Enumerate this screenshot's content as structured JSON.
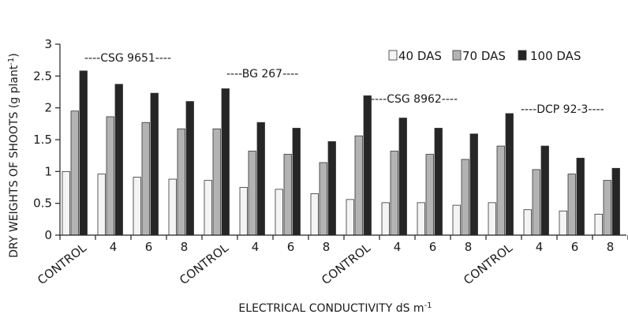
{
  "chart_data": {
    "type": "bar",
    "ylabel": "DRY WEIGHTS OF SHOOTS (g plant",
    "ylabel_sup": "-1",
    "ylabel_tail": ")",
    "xlabel": "ELECTRICAL CONDUCTIVITY dS m",
    "xlabel_sup": "-1",
    "ylim": [
      0,
      3
    ],
    "yticks": [
      "0",
      "0.5",
      "1",
      "1.5",
      "2",
      "2.5",
      "3"
    ],
    "ytick_values": [
      0,
      0.5,
      1,
      1.5,
      2,
      2.5,
      3
    ],
    "categories": [
      "CONTROL",
      "4",
      "6",
      "8",
      "CONTROL",
      "4",
      "6",
      "8",
      "CONTROL",
      "4",
      "6",
      "8",
      "CONTROL",
      "4",
      "6",
      "8"
    ],
    "series": [
      {
        "name": "40 DAS",
        "color": "#f4f4f4",
        "values": [
          1.0,
          0.96,
          0.91,
          0.88,
          0.86,
          0.75,
          0.72,
          0.65,
          0.56,
          0.51,
          0.51,
          0.47,
          0.51,
          0.4,
          0.38,
          0.33
        ]
      },
      {
        "name": "70 DAS",
        "color": "#b3b3b3",
        "values": [
          1.95,
          1.86,
          1.77,
          1.67,
          1.67,
          1.32,
          1.27,
          1.14,
          1.56,
          1.32,
          1.27,
          1.19,
          1.4,
          1.03,
          0.96,
          0.86
        ]
      },
      {
        "name": "100 DAS",
        "color": "#262626",
        "values": [
          2.58,
          2.37,
          2.23,
          2.1,
          2.3,
          1.77,
          1.68,
          1.47,
          2.19,
          1.84,
          1.68,
          1.59,
          1.91,
          1.4,
          1.21,
          1.05
        ]
      }
    ],
    "group_labels": [
      "----CSG 9651----",
      "----BG 267----",
      "----CSG 8962----",
      "----DCP 92-3----"
    ],
    "legend_position": "top-right",
    "grid": false
  }
}
